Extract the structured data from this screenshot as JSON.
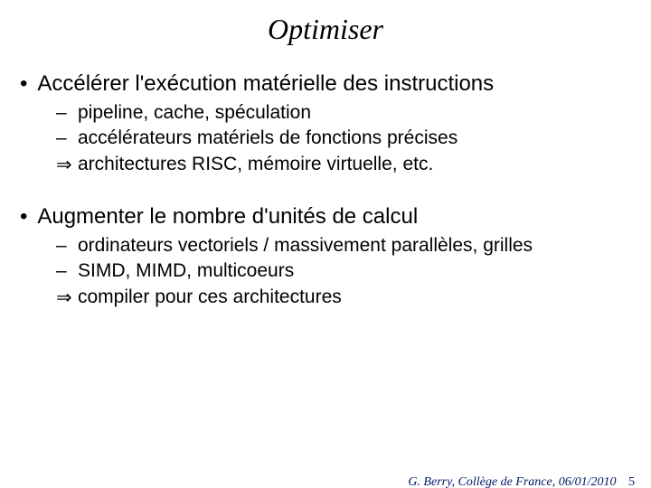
{
  "slide": {
    "title": "Optimiser",
    "title_fontsize": 32,
    "title_font": "Times New Roman italic",
    "background_color": "#ffffff",
    "text_color": "#000000",
    "bullets": [
      {
        "text": "Accélérer l'exécution matérielle des instructions",
        "sub": [
          {
            "marker": "–",
            "text": "pipeline, cache, spéculation"
          },
          {
            "marker": "–",
            "text": "accélérateurs matériels de fonctions précises"
          },
          {
            "marker": "⇒",
            "text": "architectures RISC, mémoire virtuelle, etc."
          }
        ]
      },
      {
        "text": "Augmenter le nombre d'unités de calcul",
        "sub": [
          {
            "marker": "–",
            "text": "ordinateurs vectoriels / massivement parallèles, grilles"
          },
          {
            "marker": "–",
            "text": "SIMD, MIMD, multicoeurs"
          },
          {
            "marker": "⇒",
            "text": "compiler pour ces architectures"
          }
        ]
      }
    ],
    "top_bullet_fontsize": 24,
    "sub_bullet_fontsize": 21,
    "bullet_marker": "•",
    "dash_marker": "–",
    "arrow_marker": "⇒"
  },
  "footer": {
    "text": "G. Berry, Collège de France,  06/01/2010",
    "page_number": "5",
    "color": "#001a66",
    "fontsize": 14,
    "font": "Times New Roman italic"
  }
}
